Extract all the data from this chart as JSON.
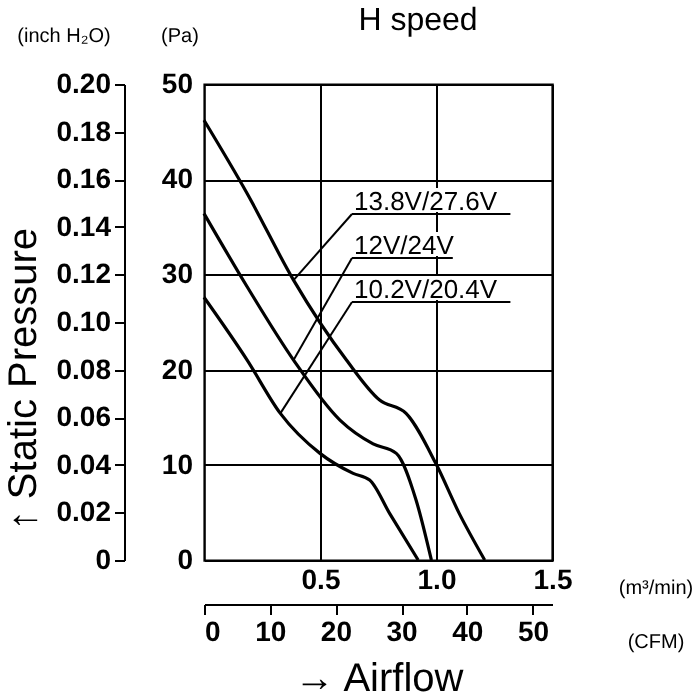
{
  "chart_data": {
    "type": "line",
    "title": "H speed",
    "xlabel": "→ Airflow",
    "y2label": "↑ Static Pressure",
    "xlim": [
      0,
      1.5
    ],
    "xticks": [
      0.5,
      {
        "value": 1,
        "label": "1.0"
      },
      1.5
    ],
    "ylim": [
      0,
      50
    ],
    "yticks": [
      0,
      10,
      20,
      30,
      40,
      50
    ],
    "y2lim": [
      0,
      0.2
    ],
    "y2ticks": [
      0,
      {
        "value": 0.02,
        "label": "0.02"
      },
      {
        "value": 0.04,
        "label": "0.04"
      },
      {
        "value": 0.06,
        "label": "0.06"
      },
      {
        "value": 0.08,
        "label": "0.08"
      },
      {
        "value": 0.1,
        "label": "0.10"
      },
      {
        "value": 0.12,
        "label": "0.12"
      },
      {
        "value": 0.14,
        "label": "0.14"
      },
      {
        "value": 0.16,
        "label": "0.16"
      },
      {
        "value": 0.18,
        "label": "0.18"
      },
      {
        "value": 0.2,
        "label": "0.20"
      }
    ],
    "x2lim": [
      0,
      52.97
    ],
    "x2ticks": [
      0,
      10,
      20,
      30,
      40,
      50
    ],
    "grid": true,
    "legend": false,
    "marker": "none",
    "line_style": "solid",
    "annotations": [
      "(inch H₂O)",
      "(Pa)",
      "(m³/min)",
      "(CFM)"
    ],
    "series": [
      {
        "name": "13.8V/27.6V",
        "color": "#000000",
        "x": [
          0,
          0.186,
          0.386,
          0.614,
          0.757,
          0.871,
          1.0,
          1.1,
          1.21
        ],
        "values": [
          46.2,
          38.5,
          29.4,
          21,
          16.8,
          15.4,
          10.1,
          4.9,
          0
        ]
      },
      {
        "name": "12V/24V",
        "color": "#000000",
        "x": [
          0,
          0.186,
          0.386,
          0.586,
          0.729,
          0.829,
          0.914,
          0.98
        ],
        "values": [
          36.4,
          28.7,
          21,
          14.7,
          12.2,
          11.2,
          6.3,
          0
        ]
      },
      {
        "name": "10.2V/20.4V",
        "color": "#000000",
        "x": [
          0,
          0.186,
          0.329,
          0.5,
          0.643,
          0.714,
          0.8,
          0.923
        ],
        "values": [
          27.6,
          21,
          15.4,
          11.2,
          9.1,
          8.4,
          4.9,
          0
        ]
      }
    ]
  }
}
